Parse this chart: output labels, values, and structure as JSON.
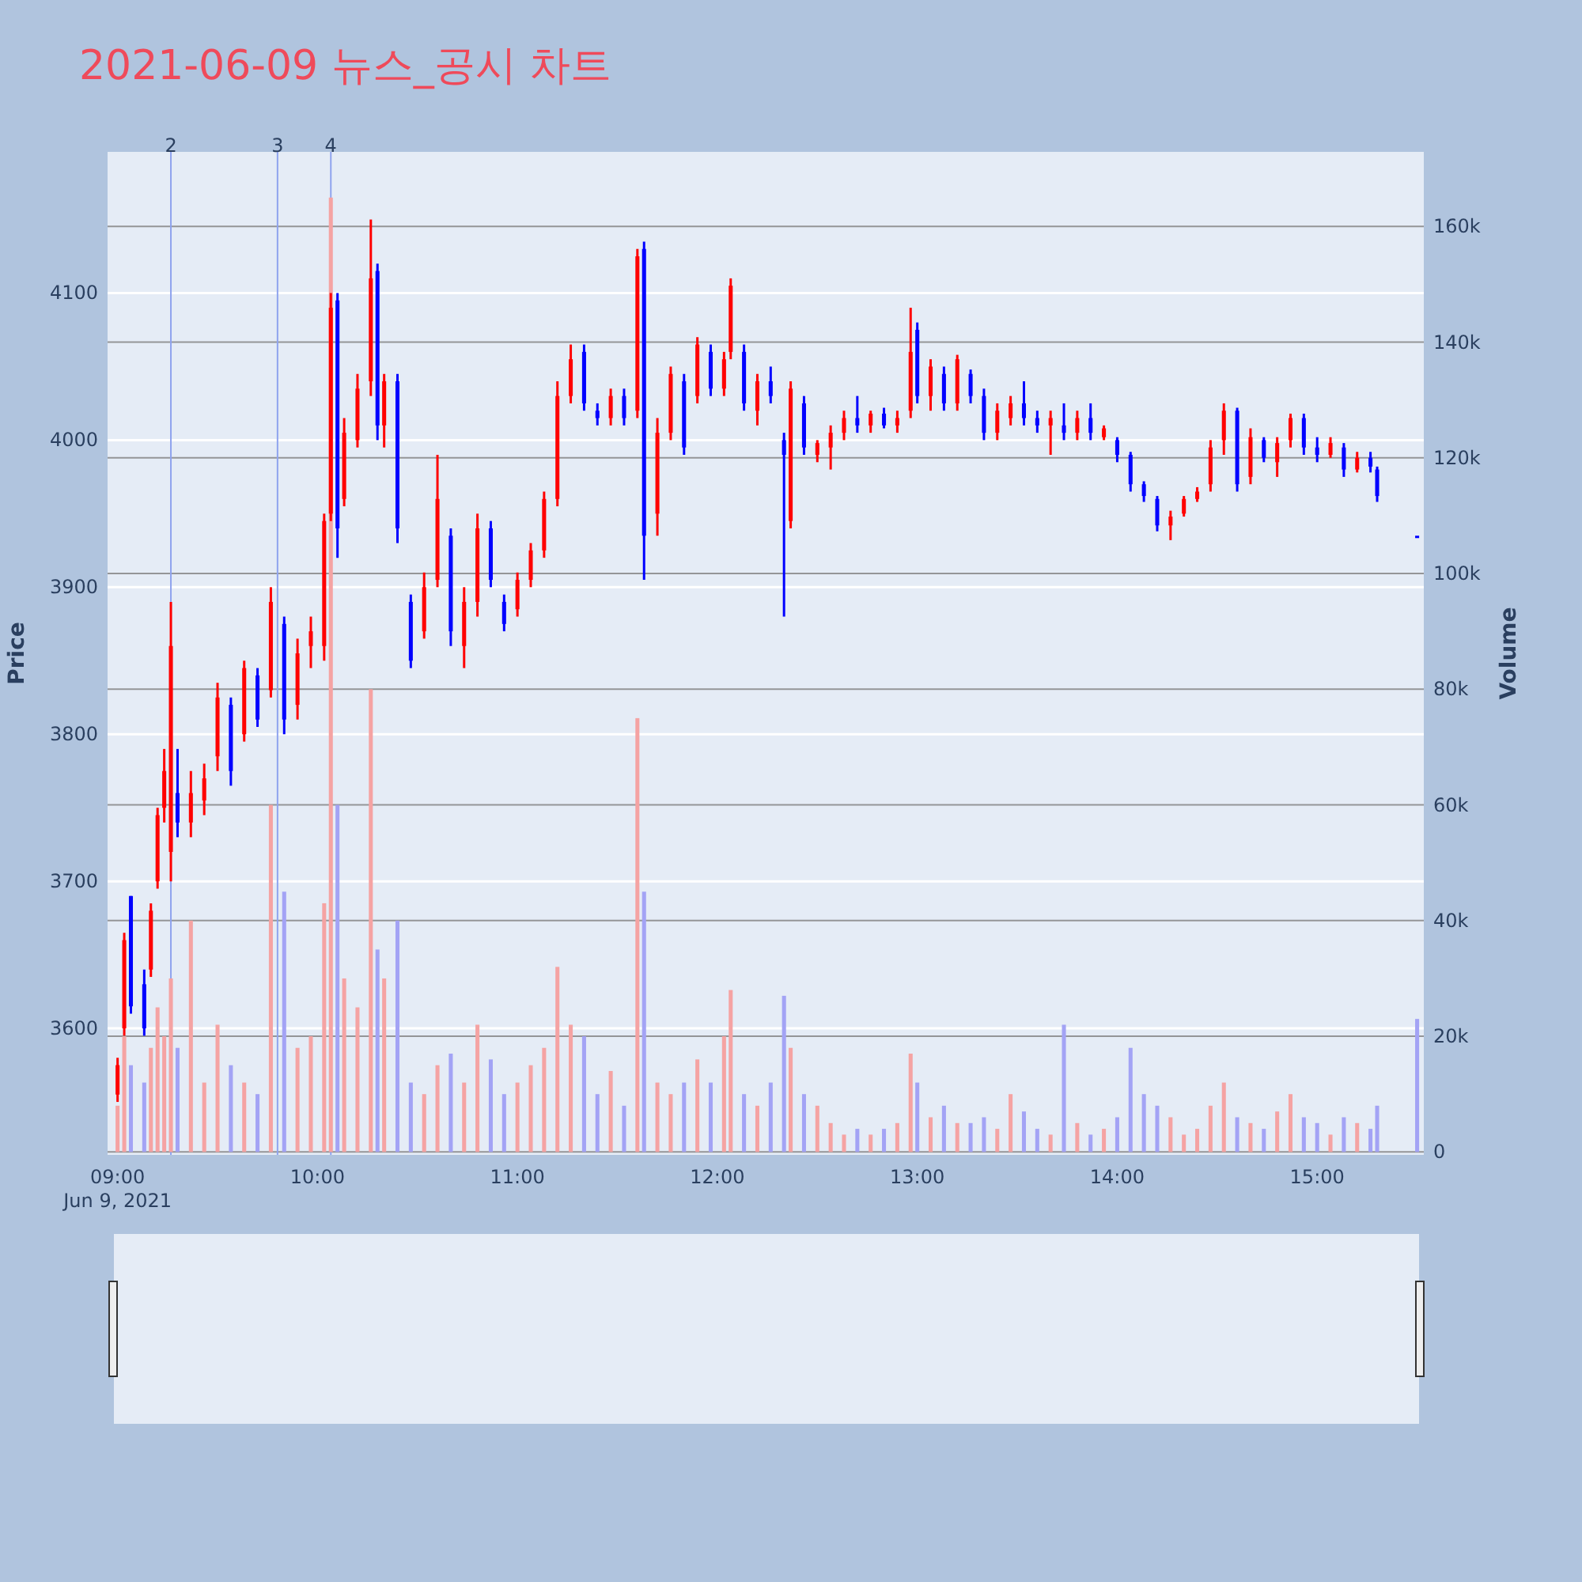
{
  "chart_data": {
    "type": "candlestick",
    "title": "2021-06-09 뉴스_공시 차트",
    "ylabel": "Price",
    "y2label": "Volume",
    "x": [
      "2021-06-09T09:00",
      "2021-06-09T09:02",
      "2021-06-09T09:04",
      "2021-06-09T09:08",
      "2021-06-09T09:10",
      "2021-06-09T09:12",
      "2021-06-09T09:14",
      "2021-06-09T09:16",
      "2021-06-09T09:18",
      "2021-06-09T09:22",
      "2021-06-09T09:26",
      "2021-06-09T09:30",
      "2021-06-09T09:34",
      "2021-06-09T09:38",
      "2021-06-09T09:42",
      "2021-06-09T09:46",
      "2021-06-09T09:50",
      "2021-06-09T09:54",
      "2021-06-09T09:58",
      "2021-06-09T10:02",
      "2021-06-09T10:04",
      "2021-06-09T10:06",
      "2021-06-09T10:08",
      "2021-06-09T10:12",
      "2021-06-09T10:16",
      "2021-06-09T10:18",
      "2021-06-09T10:20",
      "2021-06-09T10:24",
      "2021-06-09T10:28",
      "2021-06-09T10:32",
      "2021-06-09T10:36",
      "2021-06-09T10:40",
      "2021-06-09T10:44",
      "2021-06-09T10:48",
      "2021-06-09T10:52",
      "2021-06-09T10:56",
      "2021-06-09T11:00",
      "2021-06-09T11:04",
      "2021-06-09T11:08",
      "2021-06-09T11:12",
      "2021-06-09T11:16",
      "2021-06-09T11:20",
      "2021-06-09T11:24",
      "2021-06-09T11:28",
      "2021-06-09T11:32",
      "2021-06-09T11:36",
      "2021-06-09T11:38",
      "2021-06-09T11:42",
      "2021-06-09T11:46",
      "2021-06-09T11:50",
      "2021-06-09T11:54",
      "2021-06-09T11:58",
      "2021-06-09T12:02",
      "2021-06-09T12:04",
      "2021-06-09T12:08",
      "2021-06-09T12:12",
      "2021-06-09T12:16",
      "2021-06-09T12:20",
      "2021-06-09T12:22",
      "2021-06-09T12:26",
      "2021-06-09T12:30",
      "2021-06-09T12:34",
      "2021-06-09T12:38",
      "2021-06-09T12:42",
      "2021-06-09T12:46",
      "2021-06-09T12:50",
      "2021-06-09T12:54",
      "2021-06-09T12:58",
      "2021-06-09T13:00",
      "2021-06-09T13:04",
      "2021-06-09T13:08",
      "2021-06-09T13:12",
      "2021-06-09T13:16",
      "2021-06-09T13:20",
      "2021-06-09T13:24",
      "2021-06-09T13:28",
      "2021-06-09T13:32",
      "2021-06-09T13:36",
      "2021-06-09T13:40",
      "2021-06-09T13:44",
      "2021-06-09T13:48",
      "2021-06-09T13:52",
      "2021-06-09T13:56",
      "2021-06-09T14:00",
      "2021-06-09T14:04",
      "2021-06-09T14:08",
      "2021-06-09T14:12",
      "2021-06-09T14:16",
      "2021-06-09T14:20",
      "2021-06-09T14:24",
      "2021-06-09T14:28",
      "2021-06-09T14:32",
      "2021-06-09T14:36",
      "2021-06-09T14:40",
      "2021-06-09T14:44",
      "2021-06-09T14:48",
      "2021-06-09T14:52",
      "2021-06-09T14:56",
      "2021-06-09T15:00",
      "2021-06-09T15:04",
      "2021-06-09T15:08",
      "2021-06-09T15:12",
      "2021-06-09T15:16",
      "2021-06-09T15:18",
      "2021-06-09T15:30"
    ],
    "ohlc": [
      [
        3555,
        3580,
        3550,
        3575
      ],
      [
        3600,
        3665,
        3595,
        3660
      ],
      [
        3690,
        3690,
        3610,
        3615
      ],
      [
        3630,
        3640,
        3595,
        3600
      ],
      [
        3640,
        3685,
        3635,
        3680
      ],
      [
        3700,
        3750,
        3695,
        3745
      ],
      [
        3750,
        3790,
        3740,
        3775
      ],
      [
        3720,
        3890,
        3700,
        3860
      ],
      [
        3760,
        3790,
        3730,
        3740
      ],
      [
        3740,
        3775,
        3730,
        3760
      ],
      [
        3755,
        3780,
        3745,
        3770
      ],
      [
        3785,
        3835,
        3775,
        3825
      ],
      [
        3820,
        3825,
        3765,
        3775
      ],
      [
        3800,
        3850,
        3795,
        3845
      ],
      [
        3840,
        3845,
        3805,
        3810
      ],
      [
        3830,
        3900,
        3825,
        3890
      ],
      [
        3875,
        3880,
        3800,
        3810
      ],
      [
        3820,
        3865,
        3810,
        3855
      ],
      [
        3860,
        3880,
        3845,
        3870
      ],
      [
        3860,
        3950,
        3850,
        3945
      ],
      [
        3950,
        4100,
        3945,
        4090
      ],
      [
        4095,
        4100,
        3920,
        3940
      ],
      [
        3960,
        4015,
        3955,
        4005
      ],
      [
        4000,
        4045,
        3995,
        4035
      ],
      [
        4040,
        4150,
        4030,
        4110
      ],
      [
        4115,
        4120,
        4000,
        4010
      ],
      [
        4010,
        4045,
        3995,
        4040
      ],
      [
        4040,
        4045,
        3930,
        3940
      ],
      [
        3890,
        3895,
        3845,
        3850
      ],
      [
        3870,
        3910,
        3865,
        3900
      ],
      [
        3905,
        3990,
        3900,
        3960
      ],
      [
        3935,
        3940,
        3860,
        3870
      ],
      [
        3860,
        3900,
        3845,
        3890
      ],
      [
        3890,
        3950,
        3880,
        3940
      ],
      [
        3940,
        3945,
        3900,
        3905
      ],
      [
        3890,
        3895,
        3870,
        3875
      ],
      [
        3885,
        3910,
        3880,
        3905
      ],
      [
        3905,
        3930,
        3900,
        3925
      ],
      [
        3925,
        3965,
        3920,
        3960
      ],
      [
        3960,
        4040,
        3955,
        4030
      ],
      [
        4030,
        4065,
        4025,
        4055
      ],
      [
        4060,
        4065,
        4020,
        4025
      ],
      [
        4020,
        4025,
        4010,
        4015
      ],
      [
        4015,
        4035,
        4010,
        4030
      ],
      [
        4030,
        4035,
        4010,
        4015
      ],
      [
        4020,
        4130,
        4015,
        4125
      ],
      [
        4130,
        4135,
        3905,
        3935
      ],
      [
        3950,
        4015,
        3935,
        4005
      ],
      [
        4005,
        4050,
        4000,
        4045
      ],
      [
        4040,
        4045,
        3990,
        3995
      ],
      [
        4030,
        4070,
        4025,
        4065
      ],
      [
        4060,
        4065,
        4030,
        4035
      ],
      [
        4035,
        4060,
        4030,
        4055
      ],
      [
        4060,
        4110,
        4055,
        4105
      ],
      [
        4060,
        4065,
        4020,
        4025
      ],
      [
        4020,
        4045,
        4010,
        4040
      ],
      [
        4040,
        4050,
        4025,
        4030
      ],
      [
        4000,
        4005,
        3880,
        3990
      ],
      [
        3945,
        4040,
        3940,
        4035
      ],
      [
        4025,
        4030,
        3990,
        3995
      ],
      [
        3990,
        4000,
        3985,
        3998
      ],
      [
        3995,
        4010,
        3980,
        4005
      ],
      [
        4005,
        4020,
        4000,
        4015
      ],
      [
        4015,
        4030,
        4005,
        4010
      ],
      [
        4010,
        4020,
        4005,
        4018
      ],
      [
        4018,
        4022,
        4008,
        4010
      ],
      [
        4010,
        4020,
        4005,
        4015
      ],
      [
        4020,
        4090,
        4015,
        4060
      ],
      [
        4075,
        4080,
        4025,
        4030
      ],
      [
        4030,
        4055,
        4020,
        4050
      ],
      [
        4045,
        4050,
        4020,
        4025
      ],
      [
        4025,
        4058,
        4020,
        4055
      ],
      [
        4045,
        4048,
        4025,
        4030
      ],
      [
        4030,
        4035,
        4000,
        4005
      ],
      [
        4005,
        4025,
        4000,
        4020
      ],
      [
        4015,
        4030,
        4010,
        4025
      ],
      [
        4025,
        4040,
        4010,
        4015
      ],
      [
        4015,
        4020,
        4005,
        4010
      ],
      [
        4010,
        4020,
        3990,
        4015
      ],
      [
        4010,
        4025,
        4000,
        4005
      ],
      [
        4005,
        4020,
        4000,
        4015
      ],
      [
        4015,
        4025,
        4000,
        4005
      ],
      [
        4002,
        4010,
        4000,
        4008
      ],
      [
        4000,
        4002,
        3985,
        3990
      ],
      [
        3990,
        3992,
        3965,
        3970
      ],
      [
        3970,
        3972,
        3958,
        3962
      ],
      [
        3960,
        3962,
        3938,
        3942
      ],
      [
        3942,
        3952,
        3932,
        3948
      ],
      [
        3950,
        3962,
        3948,
        3960
      ],
      [
        3960,
        3968,
        3958,
        3965
      ],
      [
        3970,
        4000,
        3965,
        3995
      ],
      [
        4000,
        4025,
        3990,
        4020
      ],
      [
        4020,
        4022,
        3965,
        3970
      ],
      [
        3975,
        4008,
        3970,
        4002
      ],
      [
        4000,
        4002,
        3985,
        3988
      ],
      [
        3985,
        4002,
        3975,
        3998
      ],
      [
        4000,
        4018,
        3995,
        4015
      ],
      [
        4015,
        4018,
        3990,
        3995
      ],
      [
        3995,
        4002,
        3985,
        3990
      ],
      [
        3990,
        4002,
        3988,
        3998
      ],
      [
        3995,
        3998,
        3975,
        3980
      ],
      [
        3980,
        3992,
        3978,
        3988
      ],
      [
        3988,
        3992,
        3978,
        3982
      ],
      [
        3980,
        3982,
        3958,
        3962
      ],
      [
        3935,
        3935,
        3935,
        3935
      ]
    ],
    "colors": [
      "#ff0000",
      "#ff0000",
      "#0000ff",
      "#0000ff",
      "#ff0000",
      "#ff0000",
      "#ff0000",
      "#ff0000",
      "#0000ff",
      "#ff0000",
      "#ff0000",
      "#ff0000",
      "#0000ff",
      "#ff0000",
      "#0000ff",
      "#ff0000",
      "#0000ff",
      "#ff0000",
      "#ff0000",
      "#ff0000",
      "#ff0000",
      "#0000ff",
      "#ff0000",
      "#ff0000",
      "#ff0000",
      "#0000ff",
      "#ff0000",
      "#0000ff",
      "#0000ff",
      "#ff0000",
      "#ff0000",
      "#0000ff",
      "#ff0000",
      "#ff0000",
      "#0000ff",
      "#0000ff",
      "#ff0000",
      "#ff0000",
      "#ff0000",
      "#ff0000",
      "#ff0000",
      "#0000ff",
      "#0000ff",
      "#ff0000",
      "#0000ff",
      "#ff0000",
      "#0000ff",
      "#ff0000",
      "#ff0000",
      "#0000ff",
      "#ff0000",
      "#0000ff",
      "#ff0000",
      "#ff0000",
      "#0000ff",
      "#ff0000",
      "#0000ff",
      "#0000ff",
      "#ff0000",
      "#0000ff",
      "#ff0000",
      "#ff0000",
      "#ff0000",
      "#0000ff",
      "#ff0000",
      "#0000ff",
      "#ff0000",
      "#ff0000",
      "#0000ff",
      "#ff0000",
      "#0000ff",
      "#ff0000",
      "#0000ff",
      "#0000ff",
      "#ff0000",
      "#ff0000",
      "#0000ff",
      "#0000ff",
      "#ff0000",
      "#0000ff",
      "#ff0000",
      "#0000ff",
      "#ff0000",
      "#0000ff",
      "#0000ff",
      "#0000ff",
      "#0000ff",
      "#ff0000",
      "#ff0000",
      "#ff0000",
      "#ff0000",
      "#ff0000",
      "#0000ff",
      "#ff0000",
      "#0000ff",
      "#ff0000",
      "#ff0000",
      "#0000ff",
      "#0000ff",
      "#ff0000",
      "#0000ff",
      "#ff0000",
      "#0000ff",
      "#0000ff",
      "#0000ff"
    ],
    "series": [
      {
        "type": "bar",
        "axis": "y2",
        "values": [
          8000,
          20000,
          15000,
          12000,
          18000,
          25000,
          20000,
          30000,
          18000,
          40000,
          12000,
          22000,
          15000,
          12000,
          10000,
          60000,
          45000,
          18000,
          20000,
          43000,
          165000,
          60000,
          30000,
          25000,
          80000,
          35000,
          30000,
          40000,
          12000,
          10000,
          15000,
          17000,
          12000,
          22000,
          16000,
          10000,
          12000,
          15000,
          18000,
          32000,
          22000,
          20000,
          10000,
          14000,
          8000,
          75000,
          45000,
          12000,
          10000,
          12000,
          16000,
          12000,
          20000,
          28000,
          10000,
          8000,
          12000,
          27000,
          18000,
          10000,
          8000,
          5000,
          3000,
          4000,
          3000,
          4000,
          5000,
          17000,
          12000,
          6000,
          8000,
          5000,
          5000,
          6000,
          4000,
          10000,
          7000,
          4000,
          3000,
          22000,
          5000,
          3000,
          4000,
          6000,
          18000,
          10000,
          8000,
          6000,
          3000,
          4000,
          8000,
          12000,
          6000,
          5000,
          4000,
          7000,
          10000,
          6000,
          5000,
          3000,
          6000,
          5000,
          4000,
          8000,
          23000
        ],
        "colors": [
          "#f5a3a3",
          "#f5a3a3",
          "#a3a3f5",
          "#a3a3f5",
          "#f5a3a3",
          "#f5a3a3",
          "#f5a3a3",
          "#f5a3a3",
          "#a3a3f5",
          "#f5a3a3",
          "#f5a3a3",
          "#f5a3a3",
          "#a3a3f5",
          "#f5a3a3",
          "#a3a3f5",
          "#f5a3a3",
          "#a3a3f5",
          "#f5a3a3",
          "#f5a3a3",
          "#f5a3a3",
          "#f5a3a3",
          "#a3a3f5",
          "#f5a3a3",
          "#f5a3a3",
          "#f5a3a3",
          "#a3a3f5",
          "#f5a3a3",
          "#a3a3f5",
          "#a3a3f5",
          "#f5a3a3",
          "#f5a3a3",
          "#a3a3f5",
          "#f5a3a3",
          "#f5a3a3",
          "#a3a3f5",
          "#a3a3f5",
          "#f5a3a3",
          "#f5a3a3",
          "#f5a3a3",
          "#f5a3a3",
          "#f5a3a3",
          "#a3a3f5",
          "#a3a3f5",
          "#f5a3a3",
          "#a3a3f5",
          "#f5a3a3",
          "#a3a3f5",
          "#f5a3a3",
          "#f5a3a3",
          "#a3a3f5",
          "#f5a3a3",
          "#a3a3f5",
          "#f5a3a3",
          "#f5a3a3",
          "#a3a3f5",
          "#f5a3a3",
          "#a3a3f5",
          "#a3a3f5",
          "#f5a3a3",
          "#a3a3f5",
          "#f5a3a3",
          "#f5a3a3",
          "#f5a3a3",
          "#a3a3f5",
          "#f5a3a3",
          "#a3a3f5",
          "#f5a3a3",
          "#f5a3a3",
          "#a3a3f5",
          "#f5a3a3",
          "#a3a3f5",
          "#f5a3a3",
          "#a3a3f5",
          "#a3a3f5",
          "#f5a3a3",
          "#f5a3a3",
          "#a3a3f5",
          "#a3a3f5",
          "#f5a3a3",
          "#a3a3f5",
          "#f5a3a3",
          "#a3a3f5",
          "#f5a3a3",
          "#a3a3f5",
          "#a3a3f5",
          "#a3a3f5",
          "#a3a3f5",
          "#f5a3a3",
          "#f5a3a3",
          "#f5a3a3",
          "#f5a3a3",
          "#f5a3a3",
          "#a3a3f5",
          "#f5a3a3",
          "#a3a3f5",
          "#f5a3a3",
          "#f5a3a3",
          "#a3a3f5",
          "#a3a3f5",
          "#f5a3a3",
          "#a3a3f5",
          "#f5a3a3",
          "#a3a3f5",
          "#a3a3f5",
          "#a3a3f5"
        ]
      }
    ],
    "xlim": [
      "2021-06-09T08:57",
      "2021-06-09T15:32"
    ],
    "xticks": [
      {
        "value": "2021-06-09T09:00",
        "label": "09:00\nJun 9, 2021"
      },
      {
        "value": "2021-06-09T10:00",
        "label": "10:00"
      },
      {
        "value": "2021-06-09T11:00",
        "label": "11:00"
      },
      {
        "value": "2021-06-09T12:00",
        "label": "12:00"
      },
      {
        "value": "2021-06-09T13:00",
        "label": "13:00"
      },
      {
        "value": "2021-06-09T14:00",
        "label": "14:00"
      },
      {
        "value": "2021-06-09T15:00",
        "label": "15:00"
      }
    ],
    "ylim": [
      3514,
      4196
    ],
    "yticks": [
      3600,
      3700,
      3800,
      3900,
      4000,
      4100
    ],
    "y2lim": [
      -500,
      172900
    ],
    "y2ticks": [
      0,
      {
        "value": 20000,
        "label": "20k"
      },
      {
        "value": 40000,
        "label": "40k"
      },
      {
        "value": 60000,
        "label": "60k"
      },
      {
        "value": 80000,
        "label": "80k"
      },
      {
        "value": 100000,
        "label": "100k"
      },
      {
        "value": 120000,
        "label": "120k"
      },
      {
        "value": 140000,
        "label": "140k"
      },
      {
        "value": 160000,
        "label": "160k"
      }
    ],
    "ref_lines": [
      {
        "axis": "x",
        "value": "2021-06-09T09:16",
        "label": "2",
        "color": "#8fa3ee"
      },
      {
        "axis": "x",
        "value": "2021-06-09T09:48",
        "label": "3",
        "color": "#8fa3ee"
      },
      {
        "axis": "x",
        "value": "2021-06-09T10:04",
        "label": "4",
        "color": "#8fa3ee"
      }
    ],
    "grid": "y"
  }
}
